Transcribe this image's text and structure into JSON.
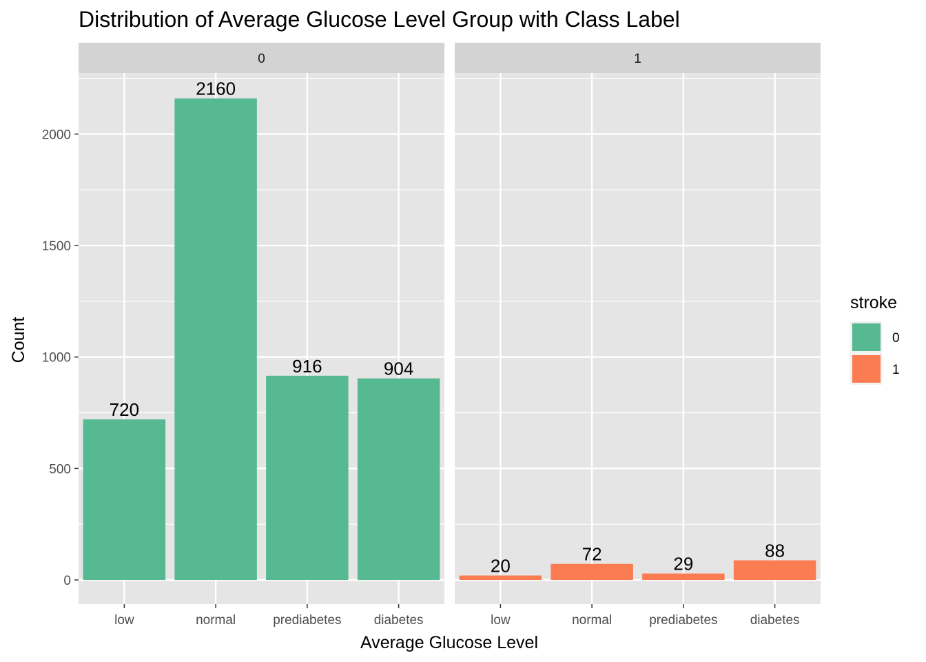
{
  "chart_data": {
    "type": "bar",
    "title": "Distribution of Average Glucose Level Group with Class Label",
    "xlabel": "Average Glucose Level",
    "ylabel": "Count",
    "ylim": [
      0,
      2270
    ],
    "yticks": [
      0,
      500,
      1000,
      1500,
      2000
    ],
    "categories": [
      "low",
      "normal",
      "prediabetes",
      "diabetes"
    ],
    "facet_variable": "stroke",
    "panels": [
      {
        "label": "0",
        "values": [
          720,
          2160,
          916,
          904
        ],
        "color": "#56B991"
      },
      {
        "label": "1",
        "values": [
          20,
          72,
          29,
          88
        ],
        "color": "#FC7C52"
      }
    ],
    "legend": {
      "title": "stroke",
      "placement": "right",
      "entries": [
        {
          "label": "0",
          "color": "#56B991"
        },
        {
          "label": "1",
          "color": "#FC7C52"
        }
      ]
    },
    "grid": true,
    "panel_background": "#E5E5E5",
    "strip_background": "#D3D3D3"
  }
}
